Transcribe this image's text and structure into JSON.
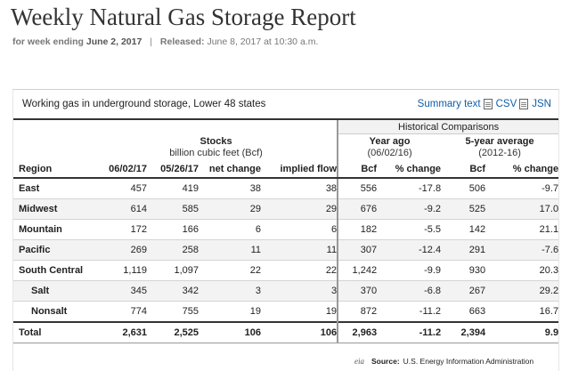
{
  "header": {
    "title": "Weekly Natural Gas Storage Report",
    "week_label": "for week ending",
    "week_value": "June 2, 2017",
    "separator": "|",
    "released_label": "Released:",
    "released_value": "June 8, 2017 at 10:30 a.m."
  },
  "panel": {
    "title": "Working gas in underground storage, Lower 48 states",
    "links": {
      "summary": "Summary text",
      "csv": "CSV",
      "json": "JSN"
    }
  },
  "table": {
    "historical_label": "Historical Comparisons",
    "stocks_title": "Stocks",
    "stocks_units": "billion cubic feet (Bcf)",
    "year_ago_title": "Year ago",
    "year_ago_date": "(06/02/16)",
    "five_year_title": "5-year average",
    "five_year_range": "(2012-16)",
    "columns": [
      "Region",
      "06/02/17",
      "05/26/17",
      "net change",
      "implied flow",
      "Bcf",
      "% change",
      "Bcf",
      "% change"
    ],
    "rows": [
      [
        "East",
        "457",
        "419",
        "38",
        "38",
        "556",
        "-17.8",
        "506",
        "-9.7"
      ],
      [
        "Midwest",
        "614",
        "585",
        "29",
        "29",
        "676",
        "-9.2",
        "525",
        "17.0"
      ],
      [
        "Mountain",
        "172",
        "166",
        "6",
        "6",
        "182",
        "-5.5",
        "142",
        "21.1"
      ],
      [
        "Pacific",
        "269",
        "258",
        "11",
        "11",
        "307",
        "-12.4",
        "291",
        "-7.6"
      ],
      [
        "South Central",
        "1,119",
        "1,097",
        "22",
        "22",
        "1,242",
        "-9.9",
        "930",
        "20.3"
      ],
      [
        "Salt",
        "345",
        "342",
        "3",
        "3",
        "370",
        "-6.8",
        "267",
        "29.2"
      ],
      [
        "Nonsalt",
        "774",
        "755",
        "19",
        "19",
        "872",
        "-11.2",
        "663",
        "16.7"
      ],
      [
        "Total",
        "2,631",
        "2,525",
        "106",
        "106",
        "2,963",
        "-11.2",
        "2,394",
        "9.9"
      ]
    ]
  },
  "footer": {
    "logo_text": "eia",
    "source_label": "Source:",
    "source_value": "U.S. Energy Information Administration"
  }
}
